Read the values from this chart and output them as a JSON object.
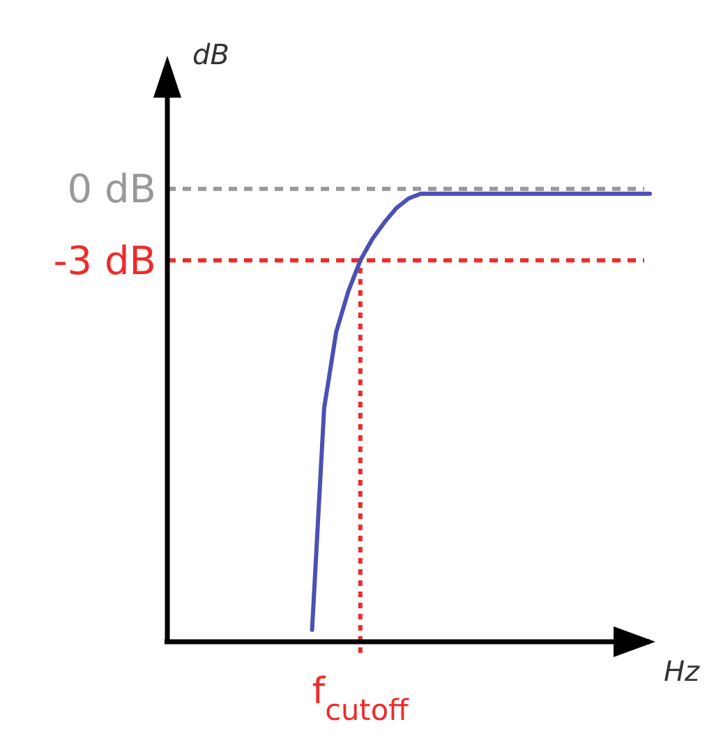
{
  "chart_data": {
    "type": "line",
    "xlabel": "Hz",
    "ylabel": "dB",
    "ylim": [
      -19,
      5
    ],
    "yticks": [
      {
        "value": 0,
        "label": "0 dB"
      },
      {
        "value": -3,
        "label": "-3 dB"
      }
    ],
    "marker": "none",
    "line_style": "solid",
    "categories": [
      null,
      null,
      null,
      null,
      null,
      null,
      null,
      null,
      null,
      null,
      null,
      null,
      null,
      null,
      null,
      null,
      "f$_{cutoff}$",
      null,
      null,
      null,
      null,
      null,
      null,
      null,
      null,
      null,
      null,
      null,
      null,
      null,
      null,
      null,
      null,
      null,
      null,
      null,
      null,
      null,
      null,
      null,
      null
    ],
    "series": [
      {
        "color": "#4a50b4",
        "values": [
          null,
          null,
          null,
          null,
          null,
          null,
          null,
          null,
          null,
          null,
          null,
          null,
          -18.5,
          -9.2,
          -6,
          -4.3,
          -3,
          -2.1,
          -1.4,
          -0.8,
          -0.4,
          -0.2,
          -0.2,
          -0.2,
          -0.2,
          -0.2,
          -0.2,
          -0.2,
          -0.2,
          -0.2,
          -0.2,
          -0.2,
          -0.2,
          -0.2,
          -0.2,
          -0.2,
          -0.2,
          -0.2,
          -0.2,
          -0.2,
          -0.2
        ]
      }
    ],
    "ref_lines": [
      {
        "axis": "y",
        "value": 0,
        "color": "#999999",
        "line_style": "dashed"
      },
      {
        "axis": "y",
        "value": -3,
        "color": "#ee2b2b",
        "line_style": "dashed"
      },
      {
        "axis": "x",
        "value": "f$_{cutoff}$",
        "color": "#ee2b2b",
        "line_style": "dotted"
      }
    ]
  }
}
